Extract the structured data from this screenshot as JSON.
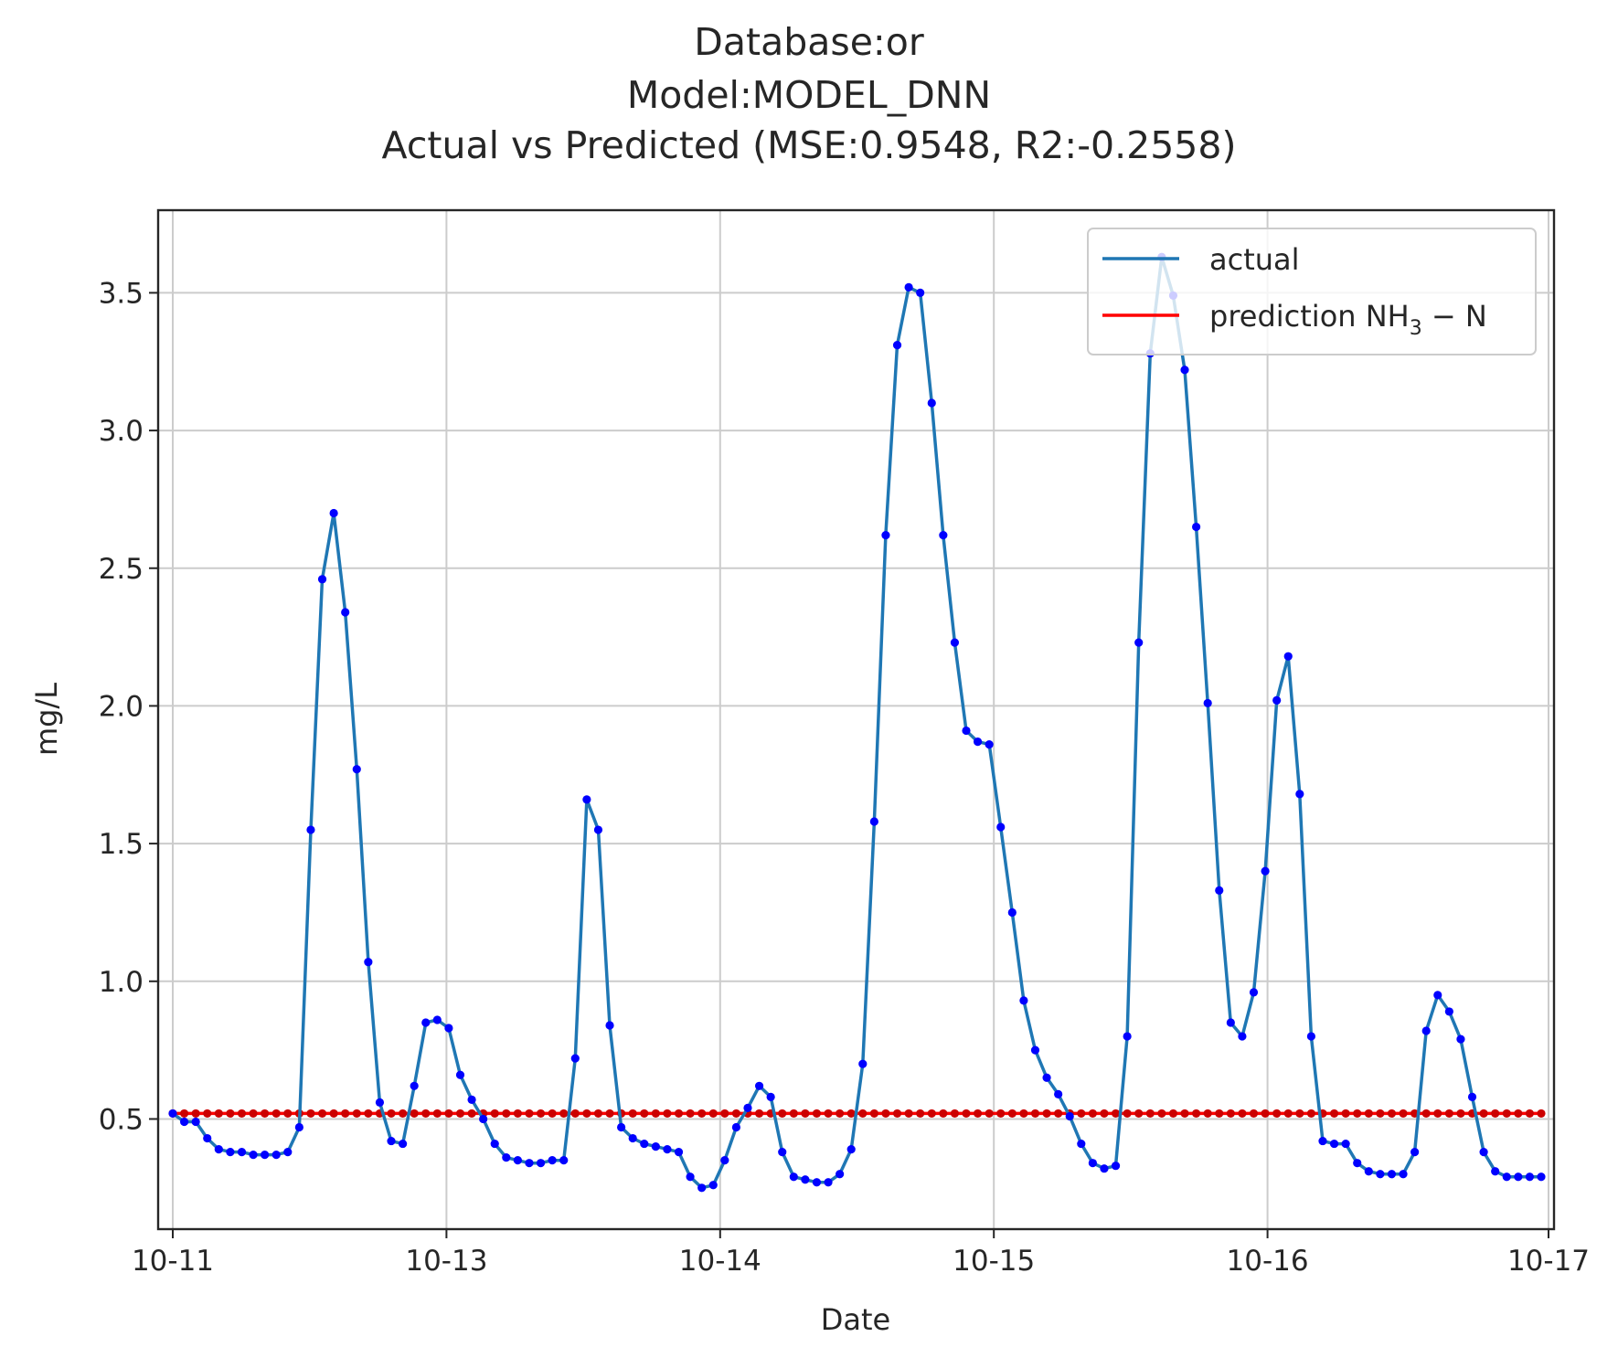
{
  "chart_data": {
    "type": "line",
    "title_lines": [
      "Database:or",
      "Model:MODEL_DNN",
      "Actual vs Predicted (MSE:0.9548, R2:-0.2558)"
    ],
    "xlabel": "Date",
    "ylabel": "mg/L",
    "x_tick_labels": [
      "10-11",
      "10-13",
      "10-14",
      "10-15",
      "10-16",
      "10-17"
    ],
    "y_tick_labels": [
      "0.5",
      "1.0",
      "1.5",
      "2.0",
      "2.5",
      "3.0",
      "3.5"
    ],
    "y_ticks": [
      0.5,
      1.0,
      1.5,
      2.0,
      2.5,
      3.0,
      3.5
    ],
    "ylim": [
      0.1,
      3.8
    ],
    "grid": true,
    "legend_position": "upper right",
    "series": [
      {
        "name": "actual",
        "color": "#1f77b4",
        "marker_color": "#0000ff",
        "values": [
          0.52,
          0.49,
          0.49,
          0.43,
          0.39,
          0.38,
          0.38,
          0.37,
          0.37,
          0.37,
          0.38,
          0.47,
          1.55,
          2.46,
          2.7,
          2.34,
          1.77,
          1.07,
          0.56,
          0.42,
          0.41,
          0.62,
          0.85,
          0.86,
          0.83,
          0.66,
          0.57,
          0.5,
          0.41,
          0.36,
          0.35,
          0.34,
          0.34,
          0.35,
          0.35,
          0.72,
          1.66,
          1.55,
          0.84,
          0.47,
          0.43,
          0.41,
          0.4,
          0.39,
          0.38,
          0.29,
          0.25,
          0.26,
          0.35,
          0.47,
          0.54,
          0.62,
          0.58,
          0.38,
          0.29,
          0.28,
          0.27,
          0.27,
          0.3,
          0.39,
          0.7,
          1.58,
          2.62,
          3.31,
          3.52,
          3.5,
          3.1,
          2.62,
          2.23,
          1.91,
          1.87,
          1.86,
          1.56,
          1.25,
          0.93,
          0.75,
          0.65,
          0.59,
          0.51,
          0.41,
          0.34,
          0.32,
          0.33,
          0.8,
          2.23,
          3.28,
          3.63,
          3.49,
          3.22,
          2.65,
          2.01,
          1.33,
          0.85,
          0.8,
          0.96,
          1.4,
          2.02,
          2.18,
          1.68,
          0.8,
          0.42,
          0.41,
          0.41,
          0.34,
          0.31,
          0.3,
          0.3,
          0.3,
          0.38,
          0.82,
          0.95,
          0.89,
          0.79,
          0.58,
          0.38,
          0.31,
          0.29,
          0.29,
          0.29,
          0.29
        ]
      },
      {
        "name": "prediction NH",
        "name_subscript": "3",
        "name_suffix": " − N",
        "color": "#ff0000",
        "marker_color": "#cc0000",
        "constant_value": 0.52
      }
    ]
  }
}
